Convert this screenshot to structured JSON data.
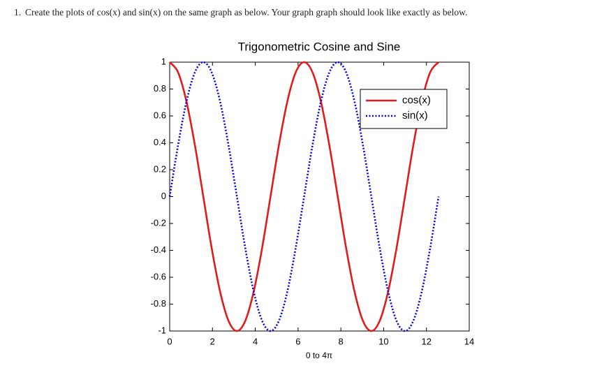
{
  "question": {
    "number": "1.",
    "text": "Create the plots of cos(x) and sin(x) on the same graph as below. Your graph graph should look like exactly as below."
  },
  "chart_data": {
    "type": "line",
    "title": "Trigonometric Cosine and Sine",
    "x_label": "0 to 4π",
    "x": [
      0,
      0.393,
      0.785,
      1.178,
      1.571,
      1.963,
      2.356,
      2.749,
      3.142,
      3.534,
      3.927,
      4.32,
      4.712,
      5.105,
      5.498,
      5.89,
      6.283,
      6.676,
      7.069,
      7.461,
      7.854,
      8.247,
      8.639,
      9.032,
      9.425,
      9.817,
      10.21,
      10.603,
      10.996,
      11.388,
      11.781,
      12.174,
      12.566
    ],
    "series": [
      {
        "name": "cos(x)",
        "color": "#e41a1a",
        "style": "solid",
        "values": [
          1,
          0.924,
          0.707,
          0.383,
          0,
          -0.383,
          -0.707,
          -0.924,
          -1,
          -0.924,
          -0.707,
          -0.383,
          0,
          0.383,
          0.707,
          0.924,
          1,
          0.924,
          0.707,
          0.383,
          0,
          -0.383,
          -0.707,
          -0.924,
          -1,
          -0.924,
          -0.707,
          -0.383,
          0,
          0.383,
          0.707,
          0.924,
          1
        ]
      },
      {
        "name": "sin(x)",
        "color": "#0000ee",
        "style": "dotted",
        "values": [
          0,
          0.383,
          0.707,
          0.924,
          1,
          0.924,
          0.707,
          0.383,
          0,
          -0.383,
          -0.707,
          -0.924,
          -1,
          -0.924,
          -0.707,
          -0.383,
          0,
          0.383,
          0.707,
          0.924,
          1,
          0.924,
          0.707,
          0.383,
          0,
          -0.383,
          -0.707,
          -0.924,
          -1,
          -0.924,
          -0.707,
          -0.383,
          0
        ]
      }
    ],
    "xlim": [
      0,
      14
    ],
    "ylim": [
      -1,
      1
    ],
    "xticks": [
      0,
      2,
      4,
      6,
      8,
      10,
      12,
      14
    ],
    "yticks": [
      -1,
      -0.8,
      -0.6,
      -0.4,
      -0.2,
      0,
      0.2,
      0.4,
      0.6,
      0.8,
      1
    ],
    "legend": "northeast",
    "grid": false
  }
}
